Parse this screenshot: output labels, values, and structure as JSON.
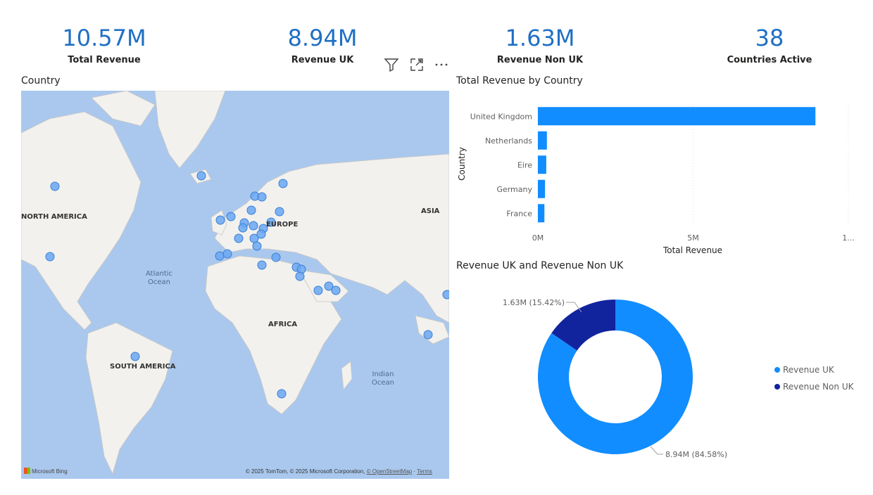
{
  "kpis": [
    {
      "value": "10.57M",
      "label": "Total Revenue"
    },
    {
      "value": "8.94M",
      "label": "Revenue UK"
    },
    {
      "value": "1.63M",
      "label": "Revenue Non UK"
    },
    {
      "value": "38",
      "label": "Countries Active"
    }
  ],
  "toolbar": {
    "filter_icon": "filter-icon",
    "focus_icon": "focus-mode-icon",
    "more_icon": "more-options-icon"
  },
  "map": {
    "title": "Country",
    "labels": {
      "north_america": "NORTH AMERICA",
      "europe": "EUROPE",
      "asia": "ASIA",
      "africa": "AFRICA",
      "south_america": "SOUTH AMERICA"
    },
    "oceans": {
      "atlantic": "Atlantic\nOcean",
      "indian": "Indian\nOcean"
    },
    "provider": "Microsoft Bing",
    "copyright_prefix": "© 2025 TomTom, © 2025 Microsoft Corporation,",
    "copyright_link": "© OpenStreetMap",
    "terms": "Terms",
    "bubble_color": "#6aa7f2",
    "land_color": "#f2f1ee",
    "water_color": "#aac8ee"
  },
  "bar_chart": {
    "title": "Total Revenue by Country",
    "chart_data": {
      "type": "bar",
      "orientation": "horizontal",
      "categories": [
        "United Kingdom",
        "Netherlands",
        "Eire",
        "Germany",
        "France"
      ],
      "values": [
        8.94,
        0.29,
        0.27,
        0.23,
        0.21
      ],
      "xlabel": "Total Revenue",
      "ylabel": "Country",
      "xlim": [
        0,
        10
      ],
      "xticks": [
        "0M",
        "5M",
        "1..."
      ],
      "color": "#118dff",
      "grid": true
    }
  },
  "donut_chart": {
    "title": "Revenue UK and Revenue Non UK",
    "chart_data": {
      "type": "pie",
      "hole": true,
      "series": [
        {
          "name": "Revenue UK",
          "value": 8.94,
          "label": "8.94M (84.58%)",
          "color": "#118dff"
        },
        {
          "name": "Revenue Non UK",
          "value": 1.63,
          "label": "1.63M (15.42%)",
          "color": "#12239e"
        }
      ],
      "legend": "right"
    }
  }
}
